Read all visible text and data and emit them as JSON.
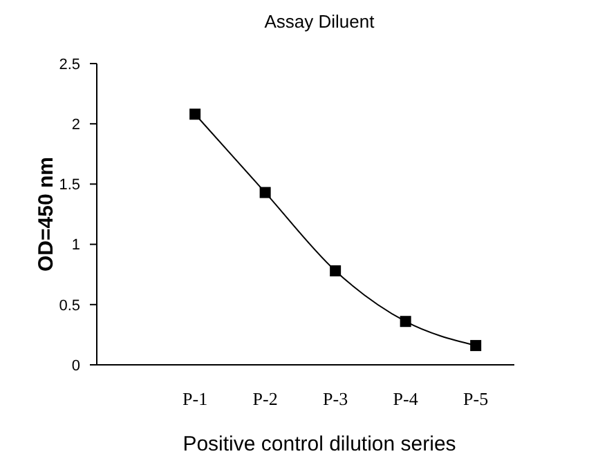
{
  "chart_data": {
    "type": "line",
    "title": "Assay Diluent",
    "xlabel": "Positive control dilution series",
    "ylabel": "OD=450 nm",
    "categories": [
      "P-1",
      "P-2",
      "P-3",
      "P-4",
      "P-5"
    ],
    "series": [
      {
        "color": "#000000",
        "values": [
          2.08,
          1.43,
          0.78,
          0.36,
          0.16
        ]
      }
    ],
    "ylim": [
      0,
      2.5
    ],
    "yticks": [
      0,
      0.5,
      1,
      1.5,
      2,
      2.5
    ],
    "marker": "square",
    "grid": false
  }
}
